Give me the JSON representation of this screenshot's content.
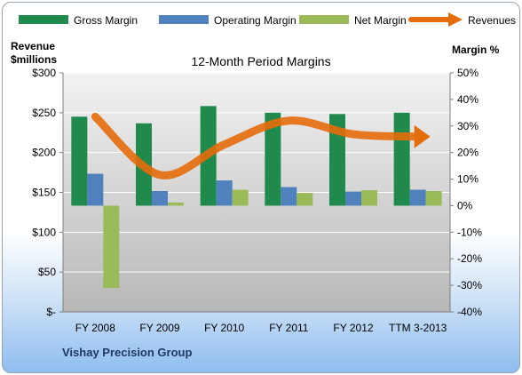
{
  "chart_data": {
    "type": "bar",
    "title": "12-Month Period Margins",
    "categories": [
      "FY 2008",
      "FY 2009",
      "FY 2010",
      "FY 2011",
      "FY 2012",
      "TTM 3-2013"
    ],
    "left_axis": {
      "label_line1": "Revenue",
      "label_line2": "$millions",
      "ylim": [
        0,
        300
      ],
      "ticks": [
        0,
        50,
        100,
        150,
        200,
        250,
        300
      ],
      "tick_labels": [
        "$-",
        "$50",
        "$100",
        "$150",
        "$200",
        "$250",
        "$300"
      ]
    },
    "right_axis": {
      "label": "Margin %",
      "ylim": [
        -40,
        50
      ],
      "ticks": [
        -40,
        -30,
        -20,
        -10,
        0,
        10,
        20,
        30,
        40,
        50
      ],
      "tick_labels": [
        "-40%",
        "-30%",
        "-20%",
        "-10%",
        "0%",
        "10%",
        "20%",
        "30%",
        "40%",
        "50%"
      ]
    },
    "series": [
      {
        "name": "Gross Margin",
        "type": "bar",
        "axis": "right",
        "color": "#1f8a4c",
        "values": [
          33.5,
          31,
          37.5,
          35,
          34.5,
          35
        ]
      },
      {
        "name": "Operating Margin",
        "type": "bar",
        "axis": "right",
        "color": "#4f81bd",
        "values": [
          12,
          5.5,
          9.5,
          7,
          5.3,
          6
        ]
      },
      {
        "name": "Net Margin",
        "type": "bar",
        "axis": "right",
        "color": "#9bbb59",
        "values": [
          -31,
          1.2,
          6,
          4.8,
          5.8,
          5.5
        ]
      },
      {
        "name": "Revenues",
        "type": "line",
        "axis": "left",
        "color": "#e46c0a",
        "values": [
          245,
          172,
          210,
          240,
          223,
          220
        ]
      }
    ],
    "legend_position": "top",
    "grid": true
  },
  "footer": {
    "company": "Vishay Precision Group"
  }
}
